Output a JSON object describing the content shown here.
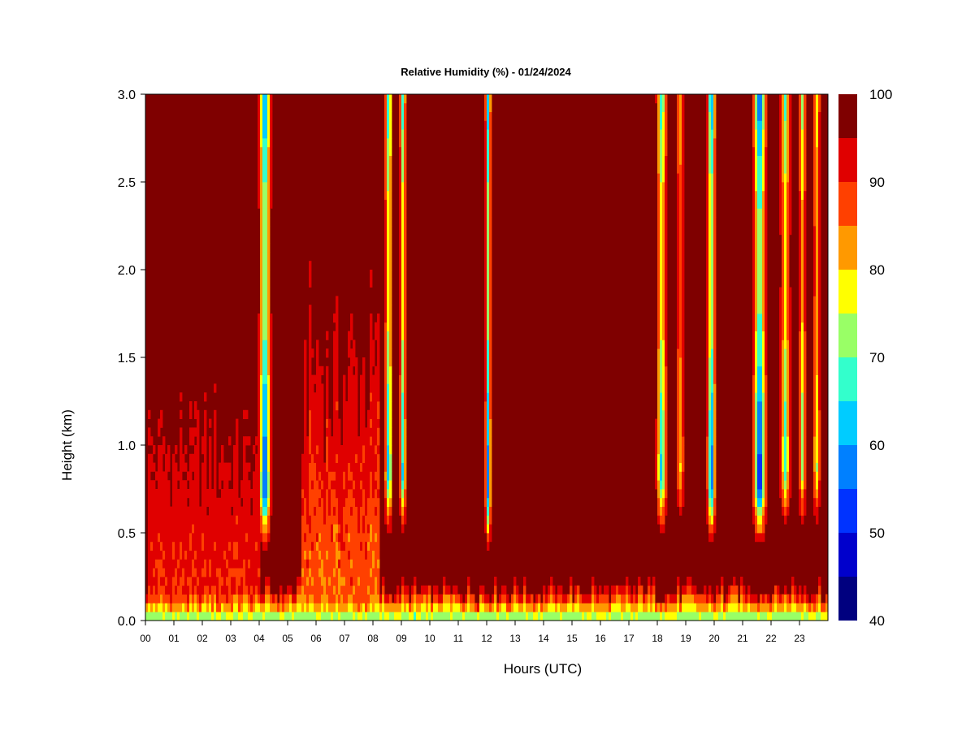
{
  "chart_data": {
    "type": "heatmap",
    "title": "Relative Humidity (%) - 01/24/2024",
    "xlabel": "Hours (UTC)",
    "ylabel": "Height (km)",
    "xlim": [
      0,
      24
    ],
    "ylim": [
      0,
      3
    ],
    "x_ticks": [
      "00",
      "01",
      "02",
      "03",
      "04",
      "05",
      "06",
      "07",
      "08",
      "09",
      "10",
      "11",
      "12",
      "13",
      "14",
      "15",
      "16",
      "17",
      "18",
      "19",
      "20",
      "21",
      "22",
      "23"
    ],
    "y_ticks": [
      "0.0",
      "0.5",
      "1.0",
      "1.5",
      "2.0",
      "2.5",
      "3.0"
    ],
    "colorbar": {
      "min": 40,
      "max": 100,
      "step": 5,
      "tick_labels": [
        "40",
        "50",
        "60",
        "70",
        "80",
        "90",
        "100"
      ],
      "colors": [
        "#00007f",
        "#0000cc",
        "#0033ff",
        "#0080ff",
        "#00ccff",
        "#33ffcc",
        "#99ff66",
        "#ffff00",
        "#ff9900",
        "#ff4000",
        "#e00000",
        "#7f0000"
      ]
    },
    "dry_columns": [
      {
        "x": 4.2,
        "width": 0.18,
        "min_rh": 48,
        "base_km": 0.38
      },
      {
        "x": 8.55,
        "width": 0.12,
        "min_rh": 58,
        "base_km": 0.45
      },
      {
        "x": 9.05,
        "width": 0.1,
        "min_rh": 62,
        "base_km": 0.45
      },
      {
        "x": 12.05,
        "width": 0.09,
        "min_rh": 55,
        "base_km": 0.35
      },
      {
        "x": 18.15,
        "width": 0.16,
        "min_rh": 60,
        "base_km": 0.45
      },
      {
        "x": 18.8,
        "width": 0.14,
        "min_rh": 78,
        "base_km": 0.5
      },
      {
        "x": 19.9,
        "width": 0.13,
        "min_rh": 50,
        "base_km": 0.4
      },
      {
        "x": 21.6,
        "width": 0.2,
        "min_rh": 45,
        "base_km": 0.4
      },
      {
        "x": 22.5,
        "width": 0.16,
        "min_rh": 65,
        "base_km": 0.5
      },
      {
        "x": 23.1,
        "width": 0.12,
        "min_rh": 70,
        "base_km": 0.5
      },
      {
        "x": 23.6,
        "width": 0.12,
        "min_rh": 72,
        "base_km": 0.5
      }
    ],
    "moist_regions": [
      {
        "x_range": [
          0.1,
          4.0
        ],
        "top_km": 1.5,
        "min_rh": 88
      },
      {
        "x_range": [
          5.5,
          8.2
        ],
        "top_km": 1.9,
        "min_rh": 83
      }
    ],
    "surface_layer": {
      "top_km": 0.2,
      "min_rh": 70
    }
  }
}
